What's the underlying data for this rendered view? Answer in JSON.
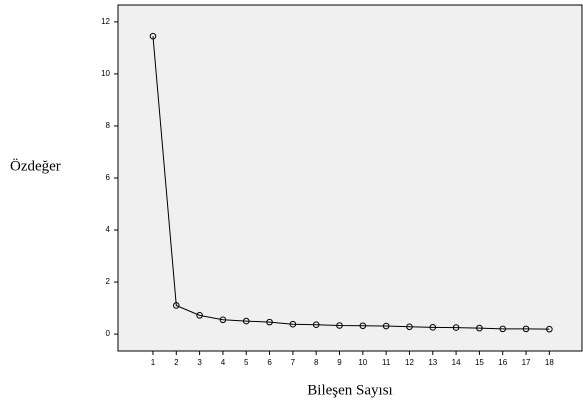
{
  "chart_data": {
    "type": "line",
    "xlabel": "Bileşen Sayısı",
    "ylabel": "Özdeğer",
    "x": [
      1,
      2,
      3,
      4,
      5,
      6,
      7,
      8,
      9,
      10,
      11,
      12,
      13,
      14,
      15,
      16,
      17,
      18
    ],
    "values": [
      11.45,
      1.1,
      0.72,
      0.55,
      0.5,
      0.46,
      0.38,
      0.36,
      0.33,
      0.32,
      0.31,
      0.28,
      0.26,
      0.25,
      0.23,
      0.2,
      0.2,
      0.19
    ],
    "color": "#000000",
    "xlim": [
      -0.5,
      19.4
    ],
    "xticks": [
      1,
      2,
      3,
      4,
      5,
      6,
      7,
      8,
      9,
      10,
      11,
      12,
      13,
      14,
      15,
      16,
      17,
      18
    ],
    "ylim": [
      -0.65,
      12.65
    ],
    "yticks": [
      0,
      2,
      4,
      6,
      8,
      10,
      12
    ]
  }
}
